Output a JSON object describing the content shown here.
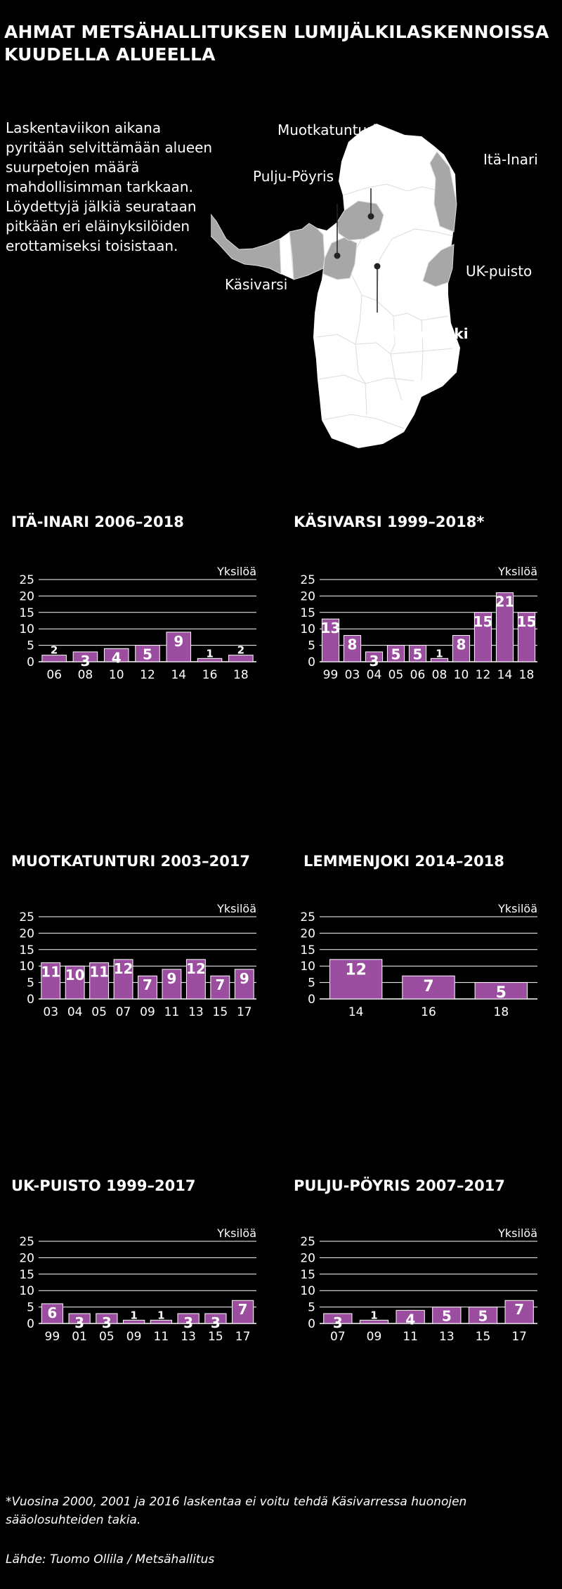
{
  "title": "AHMAT METSÄHALLITUKSEN LUMIJÄLKILASKENNOISSA KUUDELLA ALUEELLA",
  "intro": "Laskentaviikon aikana pyritään selvittämään alueen suurpetojen määrä mahdollisimman tarkkaan. Löydettyjä jälkiä seurataan pitkään eri eläinyksilöiden erottamiseksi toisistaan.",
  "map": {
    "labels": {
      "muotkatunturi": "Muotkatunturi",
      "itainari": "Itä-Inari",
      "puljupoyris": "Pulju-Pöyris",
      "ukpuisto": "UK-puisto",
      "kasivarsi": "Käsivarsi",
      "lemmenjoki": "Lemmenjoki"
    },
    "colors": {
      "land": "#ffffff",
      "region": "#a7a7a7",
      "lines": "#dcdcdc"
    }
  },
  "colors": {
    "bar": "#9b4d9f",
    "grid": "#ffffff",
    "background": "#000000"
  },
  "unit_label": "Yksilöä",
  "footnote": "*Vuosina 2000, 2001 ja 2016 laskentaa ei voitu tehdä Käsivarressa huonojen sääolosuhteiden takia.",
  "source": "Lähde: Tuomo Ollila / Metsähallitus",
  "chart_data": [
    {
      "type": "bar",
      "title": "ITÄ-INARI 2006–2018",
      "ylabel": "Yksilöä",
      "ylim": [
        0,
        25
      ],
      "yticks": [
        0,
        5,
        10,
        15,
        20,
        25
      ],
      "categories": [
        "06",
        "08",
        "10",
        "12",
        "14",
        "16",
        "18"
      ],
      "values": [
        2,
        3,
        4,
        5,
        9,
        1,
        2
      ]
    },
    {
      "type": "bar",
      "title": "KÄSIVARSI 1999–2018*",
      "ylabel": "Yksilöä",
      "ylim": [
        0,
        25
      ],
      "yticks": [
        0,
        5,
        10,
        15,
        20,
        25
      ],
      "categories": [
        "99",
        "03",
        "04",
        "05",
        "06",
        "08",
        "10",
        "12",
        "14",
        "18"
      ],
      "values": [
        13,
        8,
        3,
        5,
        5,
        1,
        8,
        15,
        21,
        15
      ]
    },
    {
      "type": "bar",
      "title": "MUOTKATUNTURI 2003–2017",
      "ylabel": "Yksilöä",
      "ylim": [
        0,
        25
      ],
      "yticks": [
        0,
        5,
        10,
        15,
        20,
        25
      ],
      "categories": [
        "03",
        "04",
        "05",
        "07",
        "09",
        "11",
        "13",
        "15",
        "17"
      ],
      "values": [
        11,
        10,
        11,
        12,
        7,
        9,
        12,
        7,
        9
      ]
    },
    {
      "type": "bar",
      "title": "LEMMENJOKI 2014–2018",
      "ylabel": "Yksilöä",
      "ylim": [
        0,
        25
      ],
      "yticks": [
        0,
        5,
        10,
        15,
        20,
        25
      ],
      "categories": [
        "14",
        "16",
        "18"
      ],
      "values": [
        12,
        7,
        5
      ]
    },
    {
      "type": "bar",
      "title": "UK-PUISTO 1999–2017",
      "ylabel": "Yksilöä",
      "ylim": [
        0,
        25
      ],
      "yticks": [
        0,
        5,
        10,
        15,
        20,
        25
      ],
      "categories": [
        "99",
        "01",
        "05",
        "09",
        "11",
        "13",
        "15",
        "17"
      ],
      "values": [
        6,
        3,
        3,
        1,
        1,
        3,
        3,
        7
      ]
    },
    {
      "type": "bar",
      "title": "PULJU-PÖYRIS 2007–2017",
      "ylabel": "Yksilöä",
      "ylim": [
        0,
        25
      ],
      "yticks": [
        0,
        5,
        10,
        15,
        20,
        25
      ],
      "categories": [
        "07",
        "09",
        "11",
        "13",
        "15",
        "17"
      ],
      "values": [
        3,
        1,
        4,
        5,
        5,
        7
      ]
    }
  ]
}
